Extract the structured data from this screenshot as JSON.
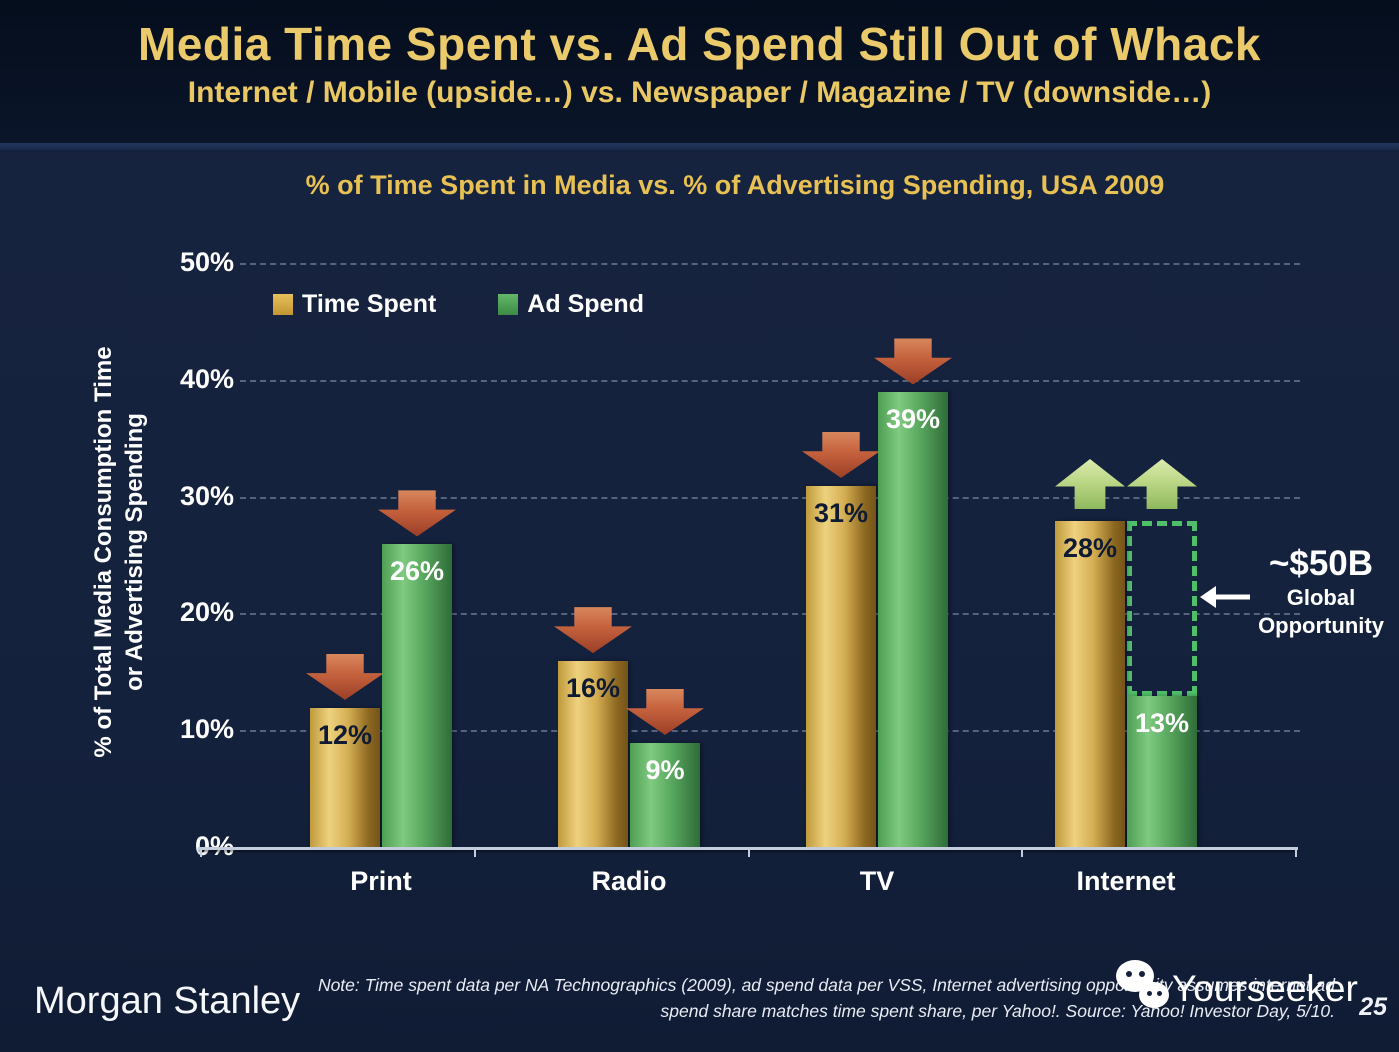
{
  "header": {
    "title": "Media Time Spent vs. Ad Spend Still Out of Whack",
    "subtitle": "Internet / Mobile (upside…) vs. Newspaper / Magazine / TV (downside…)"
  },
  "chart_data": {
    "type": "bar",
    "title": "% of Time Spent in Media vs. % of Advertising Spending, USA 2009",
    "categories": [
      "Print",
      "Radio",
      "TV",
      "Internet"
    ],
    "series": [
      {
        "name": "Time Spent",
        "color_key": "gold",
        "values": [
          12,
          16,
          31,
          28
        ]
      },
      {
        "name": "Ad Spend",
        "color_key": "green",
        "values": [
          26,
          9,
          39,
          13
        ]
      }
    ],
    "value_suffix": "%",
    "ylabel_line1": "% of Total Media Consumption Time",
    "ylabel_line2": "or Advertising Spending",
    "yticks": [
      0,
      10,
      20,
      30,
      40,
      50
    ],
    "ylim": [
      0,
      50
    ],
    "grid": "horizontal dashed lines every 10%",
    "legend_position": "top-left inside plot",
    "annotations": {
      "trend_arrows": {
        "Print": [
          "down",
          "down"
        ],
        "Radio": [
          "down",
          "down"
        ],
        "TV": [
          "down",
          "down"
        ],
        "Internet": [
          "up",
          "up"
        ]
      },
      "opportunity_box": {
        "category": "Internet",
        "series": "Ad Spend",
        "from_value": 13,
        "to_value": 28
      },
      "callout": {
        "headline": "~$50B",
        "line1": "Global",
        "line2": "Opportunity",
        "arrow_direction": "left"
      }
    }
  },
  "colors": {
    "background_navy": "#14213c",
    "header_navy": "#081324",
    "title_gold": "#eaca6b",
    "chart_title_gold": "#e8c155",
    "bar_gold": "#d4ad52",
    "bar_green": "#58a75e",
    "down_arrow_red": "#c4613d",
    "up_arrow_green": "#bcd787",
    "opportunity_box_green": "#4fbf6a",
    "axis_white": "#c3cddd"
  },
  "footer": {
    "brand": "Morgan Stanley",
    "note_line1": "Note: Time spent data per NA Technographics (2009), ad spend data per VSS, Internet advertising opportunity assumes internet ad",
    "note_line2": "spend share matches time spent share, per Yahoo!. Source: Yahoo! Investor Day, 5/10.",
    "watermark_icon": "wechat-icon",
    "watermark_label": "Yourseeker",
    "page_number": "25"
  }
}
